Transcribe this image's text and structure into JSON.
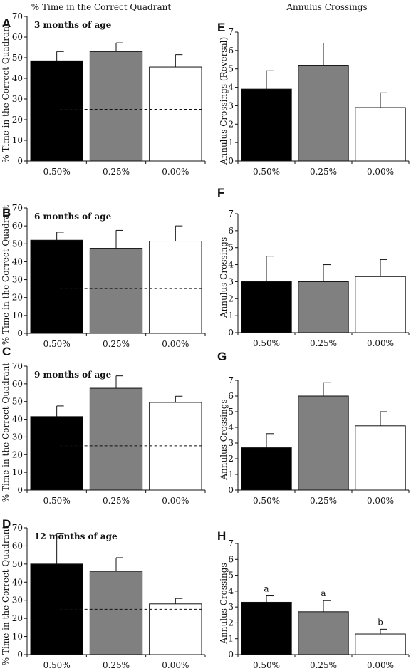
{
  "column_titles": {
    "left": "% Time in the Correct Quadrant",
    "right": "Annulus Crossings"
  },
  "colors": {
    "0.50%": "#000000",
    "0.25%": "#808080",
    "0.00%": "#ffffff"
  },
  "chart_data": [
    {
      "panel": "A",
      "type": "bar",
      "title": "3 months of age",
      "ylabel": "% Time in the Correct Quadrant",
      "categories": [
        "0.50%",
        "0.25%",
        "0.00%"
      ],
      "values": [
        48.5,
        53,
        45.5
      ],
      "errors": [
        4.5,
        4.2,
        6
      ],
      "ylim": [
        0,
        70
      ],
      "yticks": [
        0,
        10,
        20,
        30,
        40,
        50,
        60,
        70
      ],
      "reference_line": 25
    },
    {
      "panel": "B",
      "type": "bar",
      "title": "6 months of age",
      "ylabel": "% Time in the Correct Quadrant",
      "categories": [
        "0.50%",
        "0.25%",
        "0.00%"
      ],
      "values": [
        52,
        47.5,
        51.5
      ],
      "errors": [
        4.5,
        10,
        8.5
      ],
      "ylim": [
        0,
        70
      ],
      "yticks": [
        0,
        10,
        20,
        30,
        40,
        50,
        60,
        70
      ],
      "reference_line": 25
    },
    {
      "panel": "C",
      "type": "bar",
      "title": "9 months of age",
      "ylabel": "% Time in the Correct Quadrant",
      "categories": [
        "0.50%",
        "0.25%",
        "0.00%"
      ],
      "values": [
        41.5,
        57.5,
        49.5
      ],
      "errors": [
        6,
        7,
        3.5
      ],
      "ylim": [
        0,
        70
      ],
      "yticks": [
        0,
        10,
        20,
        30,
        40,
        50,
        60,
        70
      ],
      "reference_line": 25
    },
    {
      "panel": "D",
      "type": "bar",
      "title": "12 months of age",
      "ylabel": "% Time in the Correct Quadrant",
      "categories": [
        "0.50%",
        "0.25%",
        "0.00%"
      ],
      "values": [
        50,
        46,
        28
      ],
      "errors": [
        17,
        7.5,
        3
      ],
      "ylim": [
        0,
        70
      ],
      "yticks": [
        0,
        10,
        20,
        30,
        40,
        50,
        60,
        70
      ],
      "reference_line": 25
    },
    {
      "panel": "E",
      "type": "bar",
      "title": "",
      "ylabel": "Annulus Crossings (Reversal)",
      "categories": [
        "0.50%",
        "0.25%",
        "0.00%"
      ],
      "values": [
        3.9,
        5.2,
        2.9
      ],
      "errors": [
        1.0,
        1.2,
        0.8
      ],
      "ylim": [
        0,
        7
      ],
      "yticks": [
        0,
        1,
        2,
        3,
        4,
        5,
        6,
        7
      ]
    },
    {
      "panel": "F",
      "type": "bar",
      "title": "",
      "ylabel": "Annulus Crossings",
      "categories": [
        "0.50%",
        "0.25%",
        "0.00%"
      ],
      "values": [
        3.0,
        3.0,
        3.3
      ],
      "errors": [
        1.5,
        1.0,
        1.0
      ],
      "ylim": [
        0,
        7
      ],
      "yticks": [
        0,
        1,
        2,
        3,
        4,
        5,
        6,
        7
      ]
    },
    {
      "panel": "G",
      "type": "bar",
      "title": "",
      "ylabel": "Annulus Crossings",
      "categories": [
        "0.50%",
        "0.25%",
        "0.00%"
      ],
      "values": [
        2.7,
        6.0,
        4.1
      ],
      "errors": [
        0.9,
        0.85,
        0.9
      ],
      "ylim": [
        0,
        7
      ],
      "yticks": [
        0,
        1,
        2,
        3,
        4,
        5,
        6,
        7
      ]
    },
    {
      "panel": "H",
      "type": "bar",
      "title": "",
      "ylabel": "Annulus Crossings",
      "categories": [
        "0.50%",
        "0.25%",
        "0.00%"
      ],
      "values": [
        3.3,
        2.7,
        1.3
      ],
      "errors": [
        0.4,
        0.7,
        0.3
      ],
      "ylim": [
        0,
        7
      ],
      "yticks": [
        0,
        1,
        2,
        3,
        4,
        5,
        6,
        7
      ],
      "significance_labels": [
        "a",
        "a",
        "b"
      ]
    }
  ]
}
